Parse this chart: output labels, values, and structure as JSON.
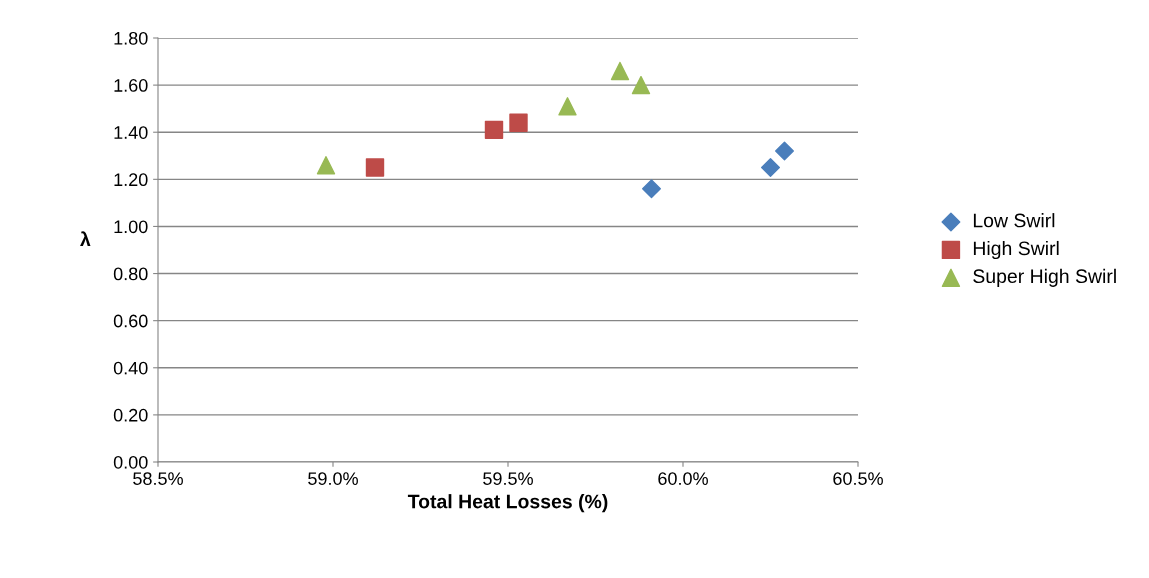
{
  "chart_data": {
    "type": "scatter",
    "xlabel": "Total Heat Losses (%)",
    "ylabel": "λ",
    "xlim": [
      58.5,
      60.5
    ],
    "xticks": [
      {
        "value": 58.5,
        "label": "58.5%"
      },
      {
        "value": 59.0,
        "label": "59.0%"
      },
      {
        "value": 59.5,
        "label": "59.5%"
      },
      {
        "value": 60.0,
        "label": "60.0%"
      },
      {
        "value": 60.5,
        "label": "60.5%"
      }
    ],
    "ylim": [
      0,
      1.8
    ],
    "yticks": [
      {
        "value": 0,
        "label": "0.00"
      },
      {
        "value": 0.2,
        "label": "0.20"
      },
      {
        "value": 0.4,
        "label": "0.40"
      },
      {
        "value": 0.6,
        "label": "0.60"
      },
      {
        "value": 0.8,
        "label": "0.80"
      },
      {
        "value": 1.0,
        "label": "1.00"
      },
      {
        "value": 1.2,
        "label": "1.20"
      },
      {
        "value": 1.4,
        "label": "1.40"
      },
      {
        "value": 1.6,
        "label": "1.60"
      },
      {
        "value": 1.8,
        "label": "1.80"
      }
    ],
    "grid": "y",
    "legend": "right",
    "series": [
      {
        "name": "Low Swirl",
        "color": "#4a7ebb",
        "marker": "diamond",
        "x": [
          59.91,
          60.25,
          60.29
        ],
        "values": [
          1.16,
          1.25,
          1.32
        ]
      },
      {
        "name": "High Swirl",
        "color": "#be4b48",
        "marker": "square",
        "x": [
          59.12,
          59.46,
          59.53
        ],
        "values": [
          1.25,
          1.41,
          1.44
        ]
      },
      {
        "name": "Super High Swirl",
        "color": "#98b954",
        "marker": "triangle",
        "x": [
          58.98,
          59.67,
          59.82,
          59.88
        ],
        "values": [
          1.26,
          1.51,
          1.66,
          1.6
        ]
      }
    ]
  }
}
